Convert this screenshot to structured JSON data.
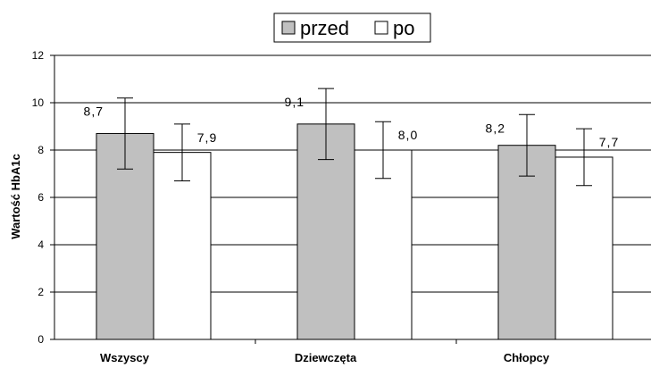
{
  "chart_data": {
    "type": "bar",
    "categories": [
      "Wszyscy",
      "Dziewczęta",
      "Chłopcy"
    ],
    "series": [
      {
        "name": "przed",
        "values": [
          8.7,
          9.1,
          8.2
        ],
        "labels": [
          "8,7",
          "9,1",
          "8,2"
        ],
        "error_low": [
          7.2,
          7.6,
          6.9
        ],
        "error_high": [
          10.2,
          10.6,
          9.5
        ],
        "color": "#c0c0c0"
      },
      {
        "name": "po",
        "values": [
          7.9,
          8.0,
          7.7
        ],
        "labels": [
          "7,9",
          "8,0",
          "7,7"
        ],
        "error_low": [
          6.7,
          6.8,
          6.5
        ],
        "error_high": [
          9.1,
          9.2,
          8.9
        ],
        "color": "#ffffff"
      }
    ],
    "ylabel": "Wartość HbA1c",
    "ylim": [
      0,
      12
    ],
    "yticks": [
      0,
      2,
      4,
      6,
      8,
      10,
      12
    ],
    "ytick_labels": [
      "0",
      "2",
      "4",
      "6",
      "8",
      "10",
      "12"
    ],
    "grid": true,
    "legend_position": "top-center"
  }
}
